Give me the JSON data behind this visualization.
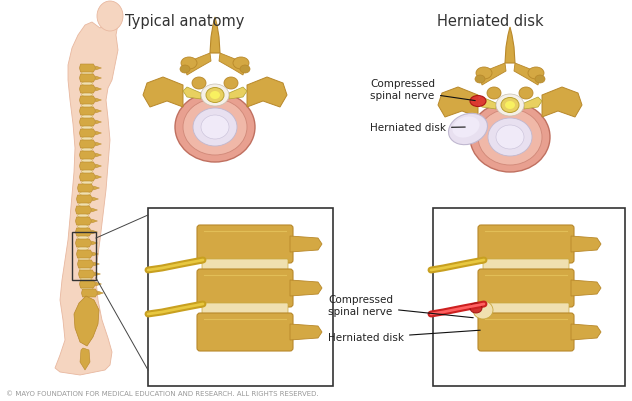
{
  "title_left": "Typical anatomy",
  "title_right": "Herniated disk",
  "label_compressed_nerve_top": "Compressed\nspinal nerve",
  "label_herniated_disk_top": "Herniated disk",
  "label_compressed_nerve_bottom": "Compressed\nspinal nerve",
  "label_herniated_disk_bottom": "Herniated disk",
  "copyright": "© MAYO FOUNDATION FOR MEDICAL EDUCATION AND RESEARCH. ALL RIGHTS RESERVED.",
  "bg_color": "#ffffff",
  "label_color": "#222222",
  "title_color": "#333333",
  "copyright_color": "#999999",
  "spine_gold": "#d4a843",
  "spine_dark": "#b8882a",
  "disk_light": "#f0d890",
  "nerve_red": "#cc2020",
  "skin_light": "#f5d5c0",
  "skin_edge": "#e8b8a0",
  "pink_outer": "#e89090",
  "pink_inner": "#f0b8a8",
  "lavender": "#ddd0e8",
  "yellow_cord": "#e8d060",
  "box_color": "#222222",
  "arrow_color": "#111111",
  "nerve_yellow": "#c8a020"
}
